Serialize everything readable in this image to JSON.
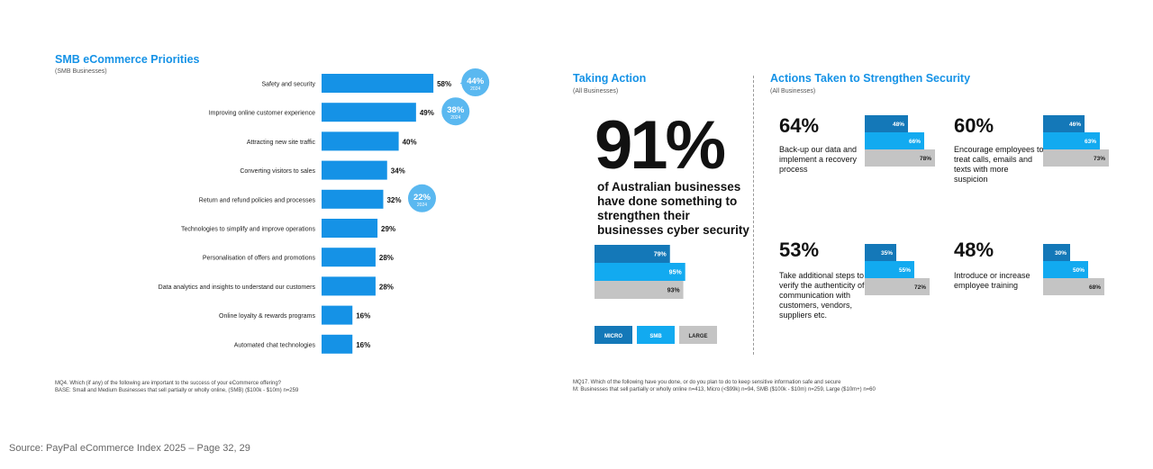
{
  "left": {
    "title": "SMB eCommerce Priorities",
    "subtitle": "(SMB Businesses)",
    "note1": "MQ4. Which (if any) of the following are important to the success of your eCommerce offering?",
    "note2": "BASE: Small and Medium Businesses that sell partially or wholly online, (SMB) ($100k - $10m) n=259"
  },
  "middle": {
    "title": "Taking Action",
    "subtitle": "(All Businesses)",
    "big_value": "91%",
    "big_desc": "of Australian businesses have done something to strengthen their businesses cyber security",
    "note1": "MQ17. Which of the following have you done, or do you plan to do to keep sensitive information safe and secure",
    "note2": "M: Businesses that sell partially or wholly online n=413, Micro (<$99k) n=94, SMB ($100k - $10m) n=259, Large ($10m+) n=60"
  },
  "right": {
    "title": "Actions Taken to Strengthen Security",
    "subtitle": "(All Businesses)"
  },
  "legend": [
    {
      "label": "MICRO",
      "color": "#1478b8"
    },
    {
      "label": "SMB",
      "color": "#12aaf0"
    },
    {
      "label": "LARGE",
      "color": "#c4c4c4"
    }
  ],
  "colors": {
    "bar": "#1592e6",
    "micro": "#1478b8",
    "smb": "#12aaf0",
    "large": "#c4c4c4",
    "bubble": "#5ab8f0"
  },
  "source": "Source: PayPal eCommerce Index 2025 – Page 32, 29",
  "chart_data": [
    {
      "type": "bar",
      "orientation": "horizontal",
      "title": "SMB eCommerce Priorities",
      "categories": [
        "Safety and security",
        "Improving online customer experience",
        "Attracting new site traffic",
        "Converting visitors to sales",
        "Return and refund policies and processes",
        "Technologies to simplify and improve operations",
        "Personalisation of offers and promotions",
        "Data analytics and insights to understand our customers",
        "Online loyalty & rewards programs",
        "Automated chat technologies"
      ],
      "values": [
        58,
        49,
        40,
        34,
        32,
        29,
        28,
        28,
        16,
        16
      ],
      "value_labels": [
        "58%",
        "49%",
        "40%",
        "34%",
        "32%",
        "29%",
        "28%",
        "28%",
        "16%",
        "16%"
      ],
      "xlim": [
        0,
        100
      ],
      "annotations": [
        {
          "category_index": 0,
          "value": "44%",
          "year": "2024"
        },
        {
          "category_index": 1,
          "value": "38%",
          "year": "2024"
        },
        {
          "category_index": 4,
          "value": "22%",
          "year": "2024"
        }
      ]
    },
    {
      "type": "bar",
      "orientation": "horizontal",
      "title": "Taking Action",
      "series": [
        {
          "name": "MICRO",
          "value": 79,
          "label": "79%"
        },
        {
          "name": "SMB",
          "value": 95,
          "label": "95%"
        },
        {
          "name": "LARGE",
          "value": 93,
          "label": "93%"
        }
      ],
      "xlim": [
        0,
        100
      ]
    },
    {
      "type": "bar",
      "orientation": "horizontal",
      "title": "Actions Taken to Strengthen Security",
      "xlim": [
        0,
        100
      ],
      "panels": [
        {
          "total": "64%",
          "desc": "Back-up our data and implement a recovery process",
          "series": [
            {
              "name": "MICRO",
              "value": 48,
              "label": "48%"
            },
            {
              "name": "SMB",
              "value": 66,
              "label": "66%"
            },
            {
              "name": "LARGE",
              "value": 78,
              "label": "78%"
            }
          ]
        },
        {
          "total": "60%",
          "desc": "Encourage employees to treat calls, emails and texts with more suspicion",
          "series": [
            {
              "name": "MICRO",
              "value": 46,
              "label": "46%"
            },
            {
              "name": "SMB",
              "value": 63,
              "label": "63%"
            },
            {
              "name": "LARGE",
              "value": 73,
              "label": "73%"
            }
          ]
        },
        {
          "total": "53%",
          "desc": "Take additional steps to verify the authenticity of communication with customers, vendors, suppliers etc.",
          "series": [
            {
              "name": "MICRO",
              "value": 35,
              "label": "35%"
            },
            {
              "name": "SMB",
              "value": 55,
              "label": "55%"
            },
            {
              "name": "LARGE",
              "value": 72,
              "label": "72%"
            }
          ]
        },
        {
          "total": "48%",
          "desc": "Introduce or increase employee training",
          "series": [
            {
              "name": "MICRO",
              "value": 30,
              "label": "30%"
            },
            {
              "name": "SMB",
              "value": 50,
              "label": "50%"
            },
            {
              "name": "LARGE",
              "value": 68,
              "label": "68%"
            }
          ]
        }
      ]
    }
  ]
}
